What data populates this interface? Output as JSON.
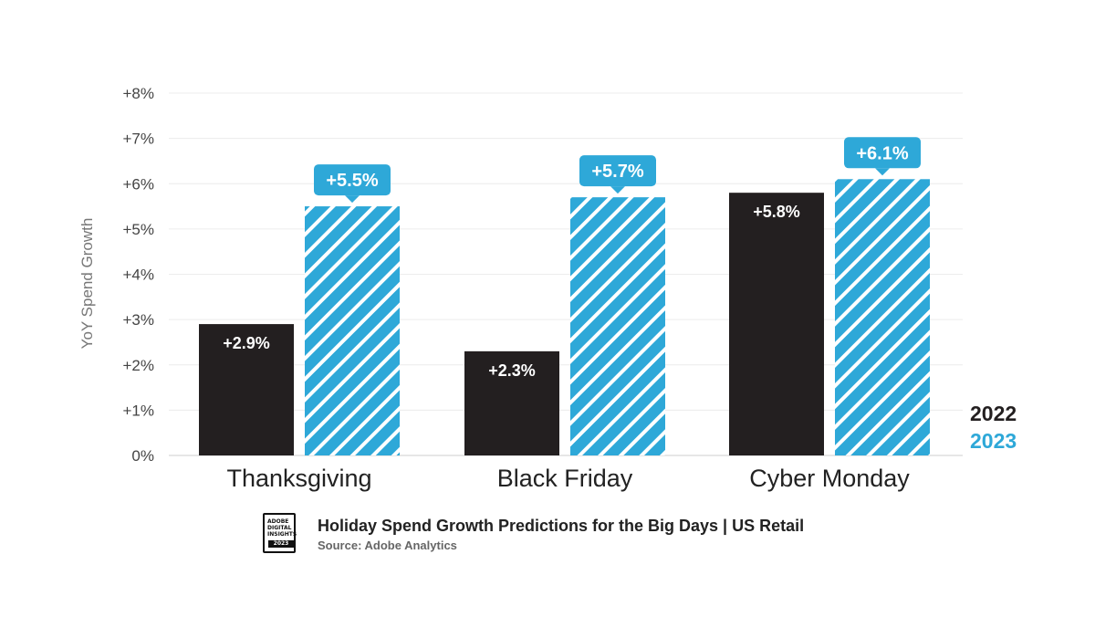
{
  "chart_data": {
    "type": "bar",
    "title": "Holiday Spend Growth Predictions for the Big Days | US Retail",
    "source": "Source: Adobe Analytics",
    "ylabel": "YoY Spend Growth",
    "xlabel": "",
    "categories": [
      "Thanksgiving",
      "Black Friday",
      "Cyber Monday"
    ],
    "ylim": [
      0,
      8
    ],
    "yticks": [
      "0%",
      "+1%",
      "+2%",
      "+3%",
      "+4%",
      "+5%",
      "+6%",
      "+7%",
      "+8%"
    ],
    "grid": true,
    "legend_position": "bottom-right",
    "series": [
      {
        "name": "2022",
        "values": [
          2.9,
          2.3,
          5.8
        ],
        "labels": [
          "+2.9%",
          "+2.3%",
          "+5.8%"
        ],
        "color": "#231f20",
        "pattern": "solid"
      },
      {
        "name": "2023",
        "values": [
          5.5,
          5.7,
          6.1
        ],
        "labels": [
          "+5.5%",
          "+5.7%",
          "+6.1%"
        ],
        "color": "#2ea8d8",
        "pattern": "hatched"
      }
    ]
  },
  "logo": {
    "lines": [
      "Adobe",
      "Digital",
      "Insights"
    ],
    "year": "2023",
    "icon": "adobe-digital-insights-badge"
  }
}
